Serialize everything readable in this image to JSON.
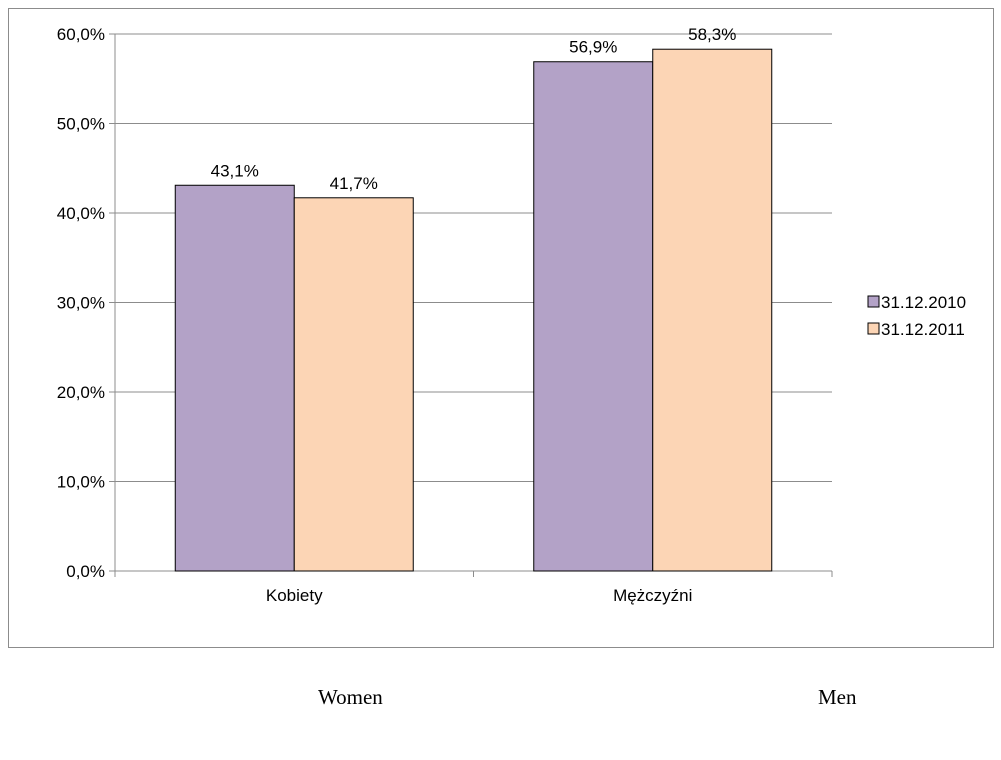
{
  "chart_data": {
    "type": "bar",
    "categories": [
      "Kobiety",
      "Mężczyźni"
    ],
    "series": [
      {
        "name": "31.12.2010",
        "values": [
          43.1,
          56.9
        ],
        "color": "#b3a2c7",
        "labels": [
          "43,1%",
          "56,9%"
        ]
      },
      {
        "name": "31.12.2011",
        "values": [
          41.7,
          58.3
        ],
        "color": "#fcd5b5",
        "labels": [
          "41,7%",
          "58,3%"
        ]
      }
    ],
    "ylim": [
      0,
      60
    ],
    "yticks": [
      "0,0%",
      "10,0%",
      "20,0%",
      "30,0%",
      "40,0%",
      "50,0%",
      "60,0%"
    ],
    "grid": true,
    "legend_position": "right"
  },
  "captions": {
    "women": "Women",
    "men": "Men"
  }
}
